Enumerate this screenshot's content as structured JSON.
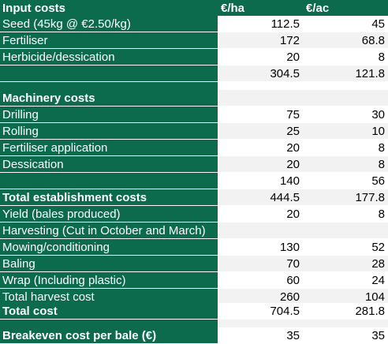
{
  "header": {
    "label": "Input costs",
    "col1": "€/ha",
    "col2": "€/ac"
  },
  "rows": [
    {
      "label": "Seed (45kg @ €2.50/kg)",
      "ha": "112.5",
      "ac": "45",
      "bold": false
    },
    {
      "label": "Fertiliser",
      "ha": "172",
      "ac": "68.8",
      "bold": false
    },
    {
      "label": "Herbicide/dessication",
      "ha": "20",
      "ac": "8",
      "bold": false
    },
    {
      "label": "",
      "ha": "304.5",
      "ac": "121.8",
      "bold": false
    },
    {
      "label": "",
      "ha": "",
      "ac": "",
      "bold": false
    },
    {
      "label": "Machinery costs",
      "ha": "",
      "ac": "",
      "bold": true
    },
    {
      "label": "Drilling",
      "ha": "75",
      "ac": "30",
      "bold": false
    },
    {
      "label": "Rolling",
      "ha": "25",
      "ac": "10",
      "bold": false
    },
    {
      "label": "Fertiliser application",
      "ha": "20",
      "ac": "8",
      "bold": false
    },
    {
      "label": "Dessication",
      "ha": "20",
      "ac": "8",
      "bold": false
    },
    {
      "label": "",
      "ha": "140",
      "ac": "56",
      "bold": false
    },
    {
      "label": "Total establishment costs",
      "ha": "444.5",
      "ac": "177.8",
      "bold": true
    },
    {
      "label": "Yield (bales produced)",
      "ha": "20",
      "ac": "8",
      "bold": false
    },
    {
      "label": "Harvesting (Cut in October and March)",
      "ha": "",
      "ac": "",
      "bold": false
    },
    {
      "label": "Mowing/conditioning",
      "ha": "130",
      "ac": "52",
      "bold": false
    },
    {
      "label": "Baling",
      "ha": "70",
      "ac": "28",
      "bold": false
    },
    {
      "label": "Wrap (Including plastic)",
      "ha": "60",
      "ac": "24",
      "bold": false
    },
    {
      "label": "Total harvest cost",
      "ha": "260",
      "ac": "104",
      "bold": false
    },
    {
      "label": "Total cost",
      "ha": "704.5",
      "ac": "281.8",
      "bold": true
    },
    {
      "label": "",
      "ha": "",
      "ac": "",
      "bold": false
    },
    {
      "label": "Breakeven cost per bale (€)",
      "ha": "35",
      "ac": "35",
      "bold": true
    }
  ]
}
